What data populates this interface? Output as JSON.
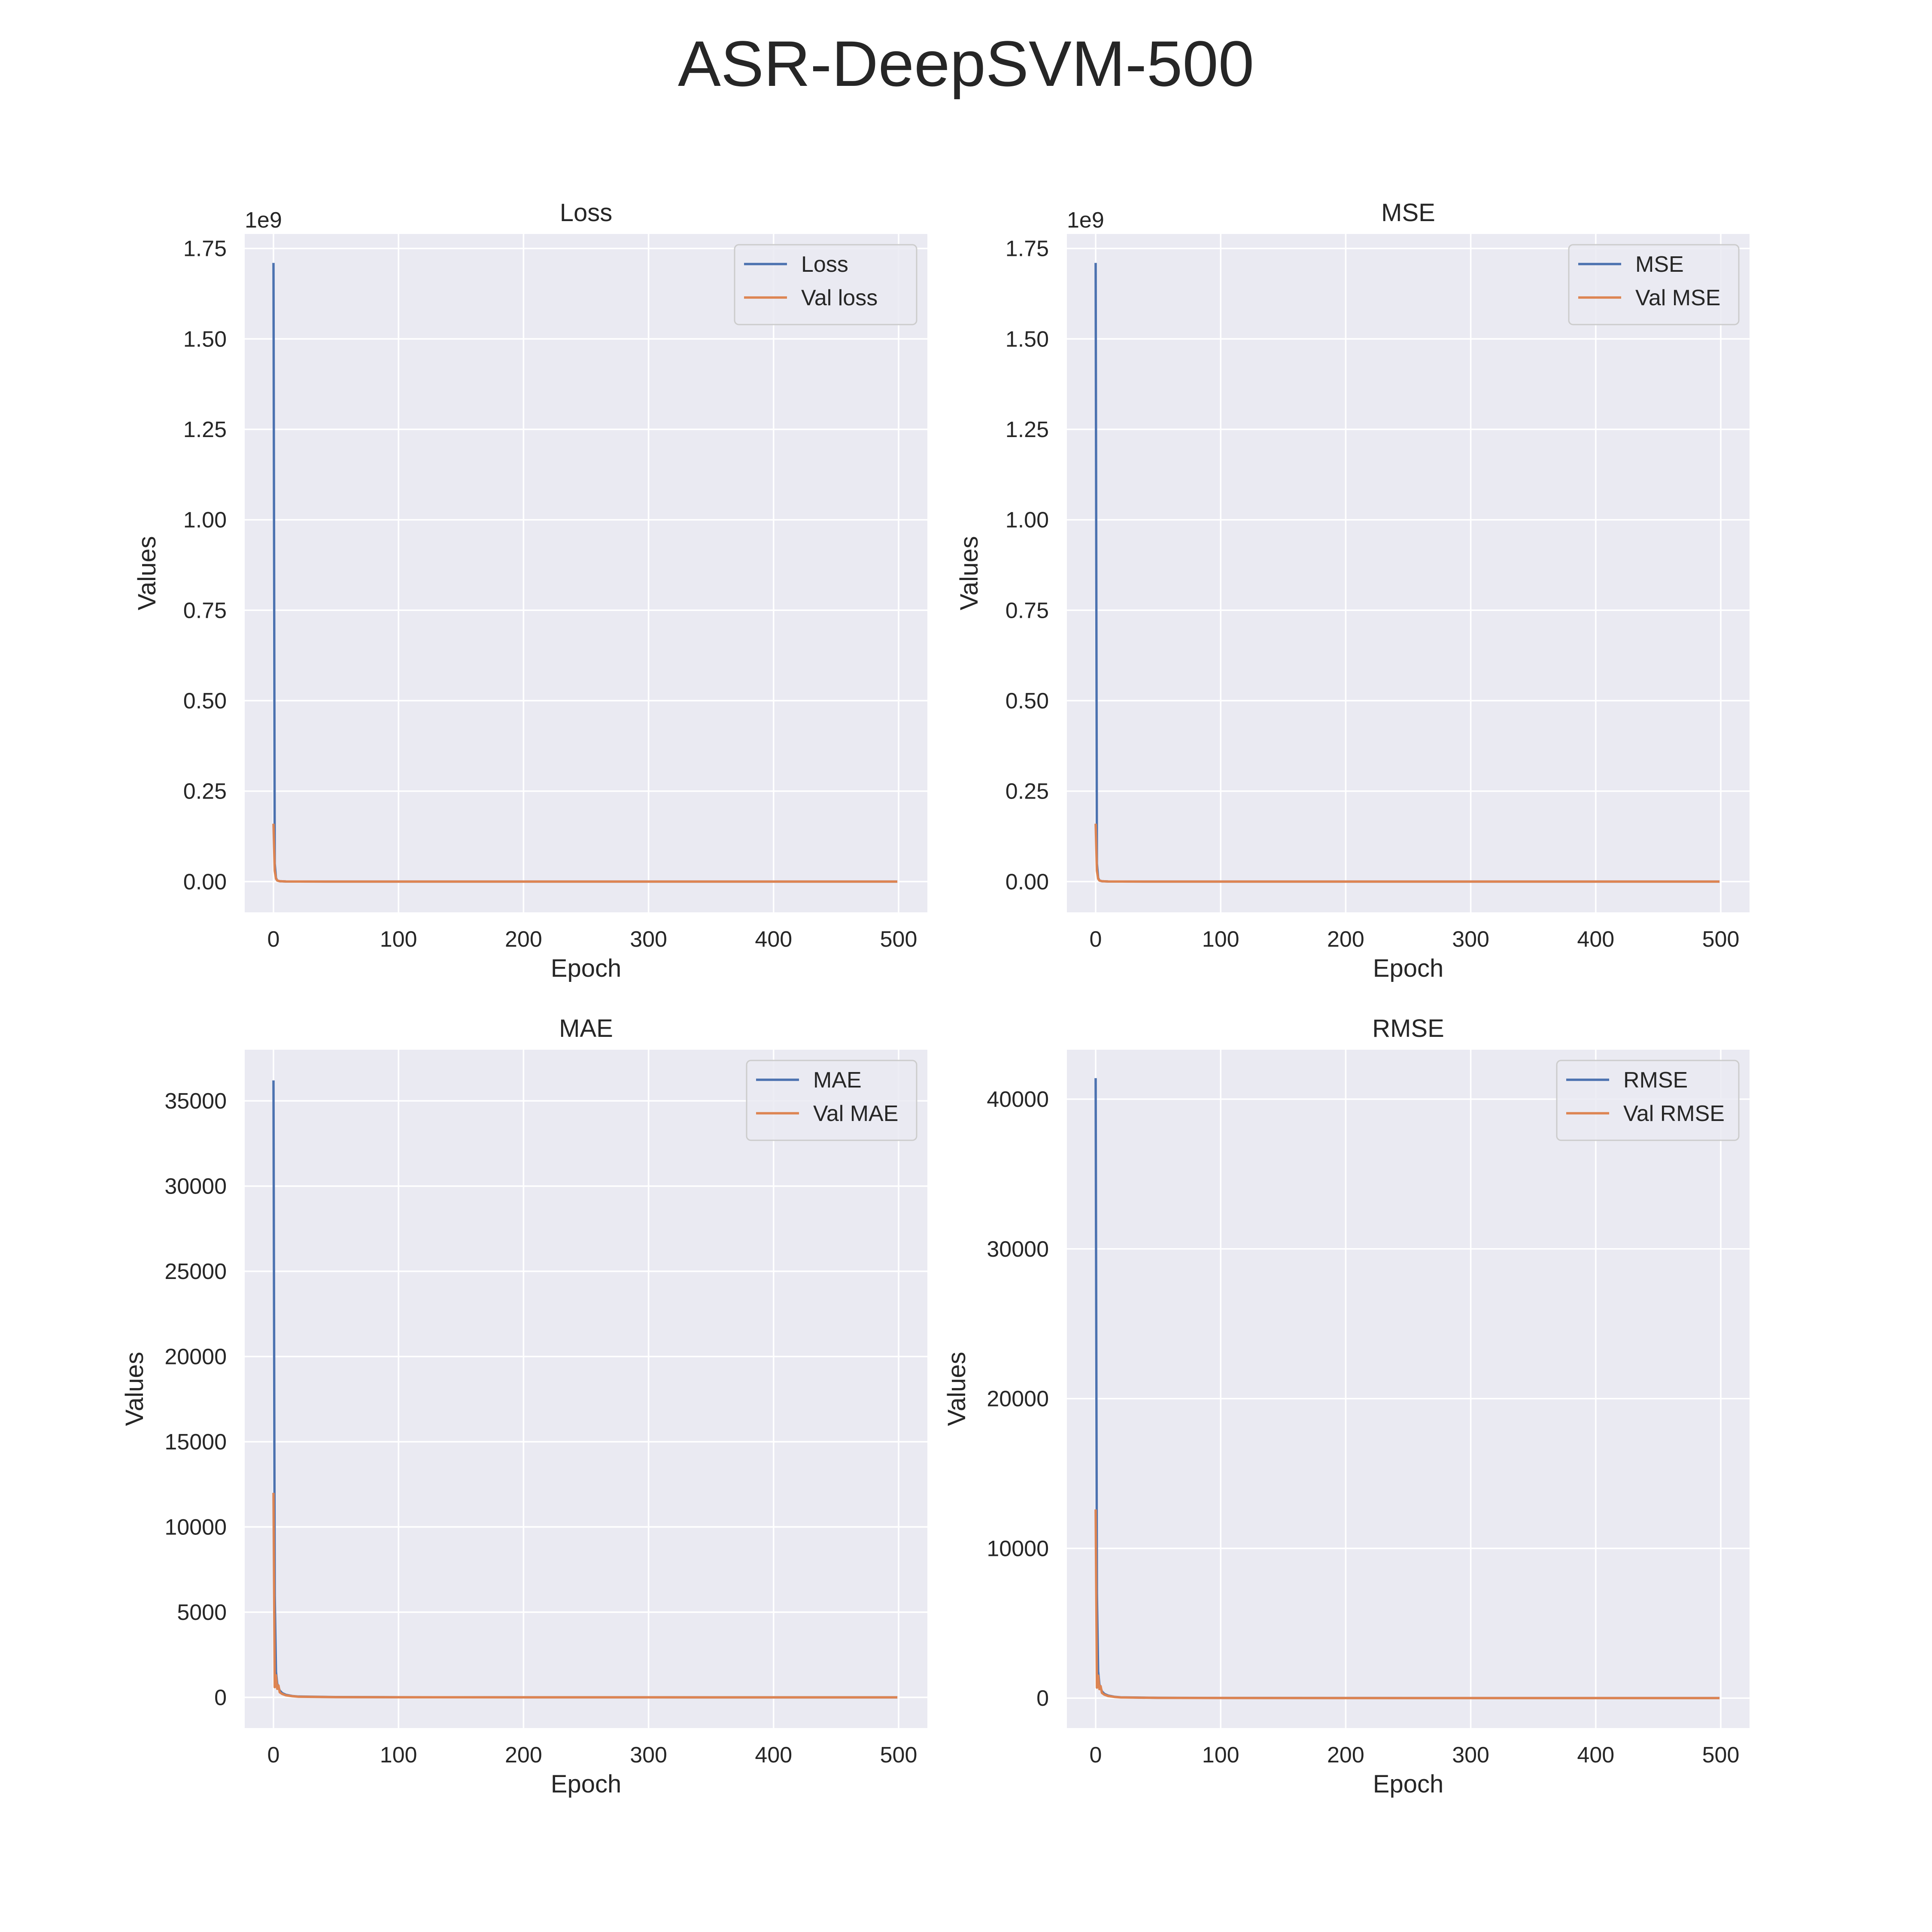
{
  "figure": {
    "title": "ASR-DeepSVM-500",
    "colors": {
      "train": "#4c72b0",
      "val": "#dd8452",
      "plot_bg": "#eaeaf2",
      "grid": "#ffffff"
    }
  },
  "chart_data": [
    {
      "type": "line",
      "title": "Loss",
      "xlabel": "Epoch",
      "ylabel": "Values",
      "axis_offset": "1e9",
      "xlim": [
        -23,
        523
      ],
      "ylim": [
        -0.085,
        1.79
      ],
      "xticks": [
        0,
        100,
        200,
        300,
        400,
        500
      ],
      "xtick_labels": [
        "0",
        "100",
        "200",
        "300",
        "400",
        "500"
      ],
      "yticks": [
        0,
        0.25,
        0.5,
        0.75,
        1.0,
        1.25,
        1.5,
        1.75
      ],
      "ytick_labels": [
        "0.00",
        "0.25",
        "0.50",
        "0.75",
        "1.00",
        "1.25",
        "1.50",
        "1.75"
      ],
      "grid": true,
      "legend_position": "top-right",
      "series": [
        {
          "name": "Loss",
          "color": "#4c72b0",
          "x": [
            0,
            1,
            2,
            3,
            5,
            10,
            20,
            50,
            100,
            200,
            300,
            400,
            499
          ],
          "y": [
            1.71,
            0.05,
            0.01,
            0.003,
            0.001,
            0.0003,
            0.0001,
            0,
            0,
            0,
            0,
            0,
            0
          ]
        },
        {
          "name": "Val loss",
          "color": "#dd8452",
          "x": [
            0,
            1,
            2,
            3,
            5,
            10,
            20,
            50,
            100,
            200,
            300,
            400,
            499
          ],
          "y": [
            0.16,
            0.03,
            0.008,
            0.003,
            0.001,
            0.0003,
            0.0001,
            0,
            0,
            0,
            0,
            0,
            0
          ]
        }
      ]
    },
    {
      "type": "line",
      "title": "MSE",
      "xlabel": "Epoch",
      "ylabel": "Values",
      "axis_offset": "1e9",
      "xlim": [
        -23,
        523
      ],
      "ylim": [
        -0.085,
        1.79
      ],
      "xticks": [
        0,
        100,
        200,
        300,
        400,
        500
      ],
      "xtick_labels": [
        "0",
        "100",
        "200",
        "300",
        "400",
        "500"
      ],
      "yticks": [
        0,
        0.25,
        0.5,
        0.75,
        1.0,
        1.25,
        1.5,
        1.75
      ],
      "ytick_labels": [
        "0.00",
        "0.25",
        "0.50",
        "0.75",
        "1.00",
        "1.25",
        "1.50",
        "1.75"
      ],
      "grid": true,
      "legend_position": "top-right",
      "series": [
        {
          "name": "MSE",
          "color": "#4c72b0",
          "x": [
            0,
            1,
            2,
            3,
            5,
            10,
            20,
            50,
            100,
            200,
            300,
            400,
            499
          ],
          "y": [
            1.71,
            0.05,
            0.01,
            0.003,
            0.001,
            0.0003,
            0.0001,
            0,
            0,
            0,
            0,
            0,
            0
          ]
        },
        {
          "name": "Val MSE",
          "color": "#dd8452",
          "x": [
            0,
            1,
            2,
            3,
            5,
            10,
            20,
            50,
            100,
            200,
            300,
            400,
            499
          ],
          "y": [
            0.16,
            0.03,
            0.008,
            0.003,
            0.001,
            0.0003,
            0.0001,
            0,
            0,
            0,
            0,
            0,
            0
          ]
        }
      ]
    },
    {
      "type": "line",
      "title": "MAE",
      "xlabel": "Epoch",
      "ylabel": "Values",
      "xlim": [
        -23,
        523
      ],
      "ylim": [
        -1800,
        38000
      ],
      "xticks": [
        0,
        100,
        200,
        300,
        400,
        500
      ],
      "xtick_labels": [
        "0",
        "100",
        "200",
        "300",
        "400",
        "500"
      ],
      "yticks": [
        0,
        5000,
        10000,
        15000,
        20000,
        25000,
        30000,
        35000
      ],
      "ytick_labels": [
        "0",
        "5000",
        "10000",
        "15000",
        "20000",
        "25000",
        "30000",
        "35000"
      ],
      "grid": true,
      "legend_position": "top-right",
      "series": [
        {
          "name": "MAE",
          "color": "#4c72b0",
          "x": [
            0,
            1,
            2,
            3,
            4,
            5,
            7,
            10,
            15,
            20,
            50,
            100,
            200,
            300,
            400,
            499
          ],
          "y": [
            36200,
            6000,
            1500,
            800,
            600,
            400,
            250,
            150,
            80,
            50,
            20,
            10,
            5,
            3,
            2,
            2
          ]
        },
        {
          "name": "Val MAE",
          "color": "#dd8452",
          "x": [
            0,
            1,
            2,
            3,
            4,
            5,
            7,
            10,
            15,
            20,
            50,
            100,
            200,
            300,
            400,
            499
          ],
          "y": [
            12000,
            600,
            1300,
            500,
            700,
            300,
            200,
            120,
            70,
            40,
            15,
            8,
            4,
            3,
            2,
            2
          ]
        }
      ]
    },
    {
      "type": "line",
      "title": "RMSE",
      "xlabel": "Epoch",
      "ylabel": "Values",
      "xlim": [
        -23,
        523
      ],
      "ylim": [
        -2000,
        43300
      ],
      "xticks": [
        0,
        100,
        200,
        300,
        400,
        500
      ],
      "xtick_labels": [
        "0",
        "100",
        "200",
        "300",
        "400",
        "500"
      ],
      "yticks": [
        0,
        10000,
        20000,
        30000,
        40000
      ],
      "ytick_labels": [
        "0",
        "10000",
        "20000",
        "30000",
        "40000"
      ],
      "grid": true,
      "legend_position": "top-right",
      "series": [
        {
          "name": "RMSE",
          "color": "#4c72b0",
          "x": [
            0,
            1,
            2,
            3,
            4,
            5,
            7,
            10,
            15,
            20,
            50,
            100,
            200,
            300,
            400,
            499
          ],
          "y": [
            41400,
            7000,
            1800,
            900,
            700,
            450,
            280,
            170,
            90,
            55,
            22,
            11,
            6,
            3,
            2,
            2
          ]
        },
        {
          "name": "Val RMSE",
          "color": "#dd8452",
          "x": [
            0,
            1,
            2,
            3,
            4,
            5,
            7,
            10,
            15,
            20,
            50,
            100,
            200,
            300,
            400,
            499
          ],
          "y": [
            12600,
            700,
            1500,
            600,
            800,
            350,
            230,
            140,
            80,
            45,
            17,
            9,
            5,
            3,
            2,
            2
          ]
        }
      ]
    }
  ]
}
